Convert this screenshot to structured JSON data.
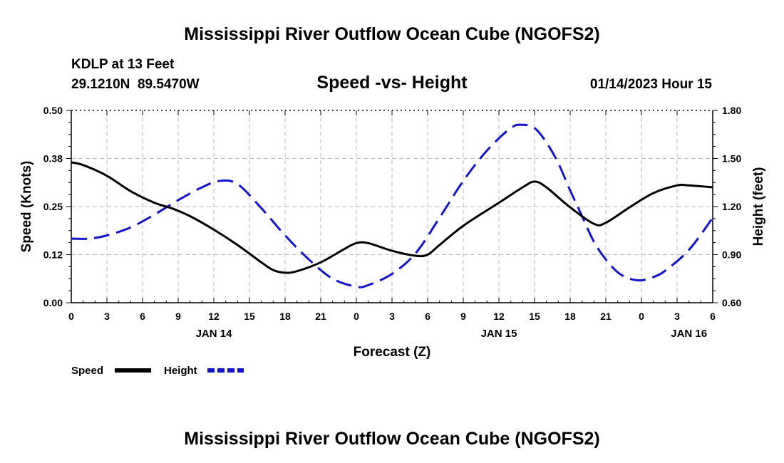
{
  "title": "Mississippi River Outflow Ocean Cube (NGOFS2)",
  "footer_title": "Mississippi River Outflow Ocean Cube (NGOFS2)",
  "station": {
    "name": "KDLP at 13 Feet",
    "coords": "29.1210N  89.5470W"
  },
  "subtitle": "Speed -vs- Height",
  "datetime": "01/14/2023 Hour 15",
  "colors": {
    "speed": "#000000",
    "height": "#1515cc",
    "grid": "#bdbdbd"
  },
  "chart_data": {
    "type": "line",
    "title": "Speed -vs- Height",
    "xlabel": "Forecast (Z)",
    "ylabel": "Speed (Knots)",
    "y2label": "Height (feet)",
    "x_hours": [
      0,
      3,
      6,
      9,
      12,
      15,
      18,
      21,
      24,
      27,
      30,
      33,
      36,
      39,
      42,
      45,
      48,
      51,
      54
    ],
    "xlim": [
      0,
      54
    ],
    "ylim": [
      0,
      0.5
    ],
    "y2lim": [
      0.6,
      1.8
    ],
    "x_tick_labels": [
      "0",
      "3",
      "6",
      "9",
      "12",
      "15",
      "18",
      "21",
      "0",
      "3",
      "6",
      "9",
      "12",
      "15",
      "18",
      "21",
      "0",
      "3",
      "6"
    ],
    "y_tick_labels": [
      "0.00",
      "0.12",
      "0.25",
      "0.38",
      "0.50"
    ],
    "y2_tick_labels": [
      "0.60",
      "0.90",
      "1.20",
      "1.50",
      "1.80"
    ],
    "day_labels": [
      {
        "x": 12,
        "label": "JAN 14"
      },
      {
        "x": 36,
        "label": "JAN 15"
      },
      {
        "x": 52,
        "label": "JAN 16"
      }
    ],
    "grid": true,
    "legend_position": "bottom-left",
    "series": [
      {
        "name": "Speed",
        "axis": "left",
        "style": "solid",
        "x": [
          0,
          1,
          3,
          5,
          7,
          8.5,
          10,
          12,
          14,
          16,
          17,
          18,
          19,
          21,
          23,
          24,
          25,
          27,
          29,
          30,
          31,
          33,
          36,
          38,
          39,
          40,
          42,
          44,
          45,
          47,
          49,
          51,
          52,
          54
        ],
        "y": [
          0.365,
          0.358,
          0.33,
          0.29,
          0.26,
          0.245,
          0.225,
          0.19,
          0.15,
          0.105,
          0.085,
          0.078,
          0.082,
          0.105,
          0.14,
          0.155,
          0.155,
          0.135,
          0.122,
          0.125,
          0.15,
          0.2,
          0.26,
          0.3,
          0.315,
          0.3,
          0.248,
          0.205,
          0.208,
          0.248,
          0.285,
          0.305,
          0.305,
          0.3
        ]
      },
      {
        "name": "Height",
        "axis": "right",
        "style": "dashed",
        "x": [
          0,
          1.5,
          3,
          5,
          7,
          9,
          11,
          12.5,
          14,
          16,
          18,
          20,
          22,
          24,
          25,
          27,
          29,
          31,
          33,
          35,
          37,
          38,
          39,
          40,
          41,
          42,
          43,
          44,
          45,
          46,
          47,
          48,
          49,
          50,
          52,
          54
        ],
        "y": [
          1.0,
          1.0,
          1.02,
          1.07,
          1.15,
          1.24,
          1.32,
          1.36,
          1.34,
          1.19,
          1.02,
          0.87,
          0.75,
          0.7,
          0.71,
          0.78,
          0.91,
          1.13,
          1.36,
          1.55,
          1.69,
          1.71,
          1.69,
          1.6,
          1.47,
          1.3,
          1.14,
          0.98,
          0.87,
          0.79,
          0.75,
          0.74,
          0.76,
          0.8,
          0.93,
          1.13
        ]
      }
    ]
  }
}
